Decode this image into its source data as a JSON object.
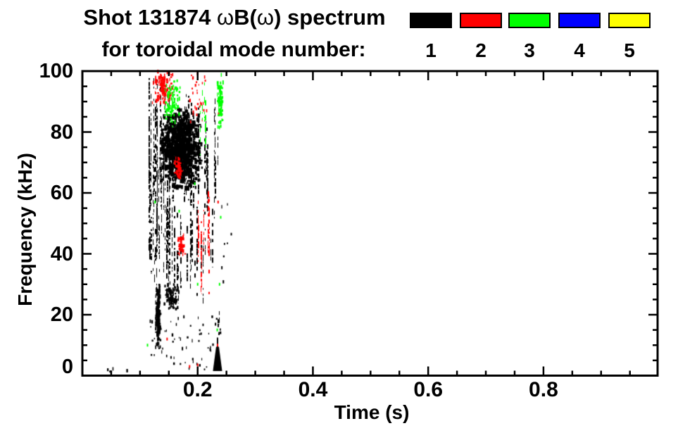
{
  "title": {
    "line1_segments": [
      {
        "text": "Shot 131874 ",
        "bold": true
      },
      {
        "text": "ω",
        "bold": false
      },
      {
        "text": "B(",
        "bold": true
      },
      {
        "text": "ω",
        "bold": false
      },
      {
        "text": ") spectrum",
        "bold": true
      }
    ],
    "line1_plain": "Shot 131874 ωB(ω) spectrum",
    "line2": "for toroidal mode number:"
  },
  "legend": {
    "entries": [
      {
        "label": "1",
        "color": "#000000"
      },
      {
        "label": "2",
        "color": "#ff0000"
      },
      {
        "label": "3",
        "color": "#00ff00"
      },
      {
        "label": "4",
        "color": "#0000ff"
      },
      {
        "label": "5",
        "color": "#ffff00"
      }
    ]
  },
  "chart_data": {
    "type": "scatter",
    "title": "Shot 131874 ωB(ω) spectrum",
    "subtitle": "for toroidal mode number:",
    "xlabel": "Time (s)",
    "ylabel": "Frequency (kHz)",
    "xlim": [
      0,
      0.998
    ],
    "ylim": [
      0,
      100
    ],
    "x_major_ticks": [
      0.2,
      0.4,
      0.6,
      0.8
    ],
    "x_minor_step": 0.05,
    "y_major_ticks": [
      0,
      20,
      40,
      60,
      80,
      100
    ],
    "y_minor_step": 5,
    "axis_color": "#000000",
    "background": "#ffffff",
    "legend_position": "top-right",
    "series": [
      {
        "name": "toroidal mode n=1",
        "color": "#000000"
      },
      {
        "name": "toroidal mode n=2",
        "color": "#ff0000"
      },
      {
        "name": "toroidal mode n=3",
        "color": "#00ff00"
      },
      {
        "name": "toroidal mode n=4",
        "color": "#0000ff"
      },
      {
        "name": "toroidal mode n=5",
        "color": "#ffff00"
      }
    ],
    "clusters": [
      {
        "name": "n1-left-dense-columns",
        "mode": 1,
        "color": "#000000",
        "style": "streaks",
        "t": [
          0.112,
          0.158
        ],
        "f": [
          30,
          100
        ],
        "n": 26
      },
      {
        "name": "n1-core-blob",
        "mode": 1,
        "color": "#000000",
        "style": "blob",
        "t": [
          0.131,
          0.207
        ],
        "f": [
          60,
          87
        ],
        "n": 850,
        "w": [
          2,
          5
        ],
        "h": [
          2,
          7
        ]
      },
      {
        "name": "n1-right-streaks",
        "mode": 1,
        "color": "#000000",
        "style": "streaks",
        "t": [
          0.155,
          0.24
        ],
        "f": [
          50,
          93
        ],
        "n": 22
      },
      {
        "name": "n1-mid-band-streaks",
        "mode": 1,
        "color": "#000000",
        "style": "streaks",
        "t": [
          0.115,
          0.238
        ],
        "f": [
          22,
          58
        ],
        "n": 26
      },
      {
        "name": "n1-low-sparse",
        "mode": 1,
        "color": "#000000",
        "style": "dots",
        "t": [
          0.11,
          0.24
        ],
        "f": [
          4,
          20
        ],
        "n": 55
      },
      {
        "name": "n1-thick-low-streak",
        "mode": 1,
        "color": "#000000",
        "style": "blob",
        "t": [
          0.1255,
          0.135
        ],
        "f": [
          8,
          30
        ],
        "n": 200,
        "w": [
          1,
          3
        ],
        "h": [
          2,
          6
        ]
      },
      {
        "name": "n1-low-cluster",
        "mode": 1,
        "color": "#000000",
        "style": "blob",
        "t": [
          0.138,
          0.168
        ],
        "f": [
          21,
          30
        ],
        "n": 120,
        "w": [
          1,
          3
        ],
        "h": [
          2,
          5
        ]
      },
      {
        "name": "n1-bottom-spike",
        "mode": 1,
        "color": "#000000",
        "style": "spike",
        "t": [
          0.2265,
          0.2425
        ],
        "f": [
          1.5,
          9.5
        ]
      },
      {
        "name": "n1-early-bottom-dots",
        "mode": 1,
        "color": "#000000",
        "style": "dots",
        "t": [
          0.042,
          0.078
        ],
        "f": [
          1.5,
          2.8
        ],
        "n": 5
      },
      {
        "name": "n1-bottom-dots",
        "mode": 1,
        "color": "#000000",
        "style": "dots",
        "t": [
          0.18,
          0.24
        ],
        "f": [
          1,
          5
        ],
        "n": 6
      },
      {
        "name": "n1-right-edge-dots",
        "mode": 1,
        "color": "#000000",
        "style": "dots",
        "t": [
          0.24,
          0.258
        ],
        "f": [
          28,
          60
        ],
        "n": 8
      },
      {
        "name": "n1-right-thin-streak",
        "mode": 1,
        "color": "#000000",
        "style": "streaks",
        "t": [
          0.234,
          0.24
        ],
        "f": [
          8,
          28
        ],
        "n": 2
      },
      {
        "name": "n2-top-left-cluster",
        "mode": 2,
        "color": "#ff0000",
        "style": "blob",
        "t": [
          0.12,
          0.158
        ],
        "f": [
          88,
          100
        ],
        "n": 120,
        "w": [
          1,
          3
        ],
        "h": [
          2,
          6
        ]
      },
      {
        "name": "n2-top-right-dashes",
        "mode": 2,
        "color": "#ff0000",
        "style": "dots",
        "t": [
          0.185,
          0.215
        ],
        "f": [
          83,
          100
        ],
        "n": 30
      },
      {
        "name": "n2-mid-patch-high",
        "mode": 2,
        "color": "#ff0000",
        "style": "blob",
        "t": [
          0.158,
          0.172
        ],
        "f": [
          64,
          72
        ],
        "n": 55,
        "w": [
          1,
          3
        ],
        "h": [
          2,
          5
        ]
      },
      {
        "name": "n2-mid-patch-low",
        "mode": 2,
        "color": "#ff0000",
        "style": "blob",
        "t": [
          0.162,
          0.178
        ],
        "f": [
          38,
          47
        ],
        "n": 50,
        "w": [
          1,
          3
        ],
        "h": [
          2,
          5
        ]
      },
      {
        "name": "n2-right-streaks",
        "mode": 2,
        "color": "#ff0000",
        "style": "streaks",
        "t": [
          0.198,
          0.225
        ],
        "f": [
          25,
          62
        ],
        "n": 11
      },
      {
        "name": "n2-scatter",
        "mode": 2,
        "color": "#ff0000",
        "style": "points",
        "pts": [
          [
            0.147,
            12
          ],
          [
            0.186,
            3
          ],
          [
            0.2,
            3.5
          ],
          [
            0.2345,
            10
          ],
          [
            0.2355,
            57
          ],
          [
            0.2365,
            86
          ]
        ]
      },
      {
        "name": "n3-top-left-cluster",
        "mode": 3,
        "color": "#00ff00",
        "style": "blob",
        "t": [
          0.138,
          0.171
        ],
        "f": [
          80,
          97
        ],
        "n": 85,
        "w": [
          1,
          3
        ],
        "h": [
          2,
          6
        ]
      },
      {
        "name": "n3-mid-streaks",
        "mode": 3,
        "color": "#00ff00",
        "style": "streaks",
        "t": [
          0.203,
          0.218
        ],
        "f": [
          72,
          97
        ],
        "n": 4
      },
      {
        "name": "n3-right-cluster",
        "mode": 3,
        "color": "#00ff00",
        "style": "blob",
        "t": [
          0.232,
          0.243
        ],
        "f": [
          80,
          100
        ],
        "n": 80,
        "w": [
          1,
          3
        ],
        "h": [
          2,
          6
        ]
      },
      {
        "name": "n3-scatter",
        "mode": 3,
        "color": "#00ff00",
        "style": "points",
        "pts": [
          [
            0.113,
            10
          ],
          [
            0.126,
            57
          ],
          [
            0.168,
            54
          ],
          [
            0.2,
            30
          ],
          [
            0.234,
            15
          ],
          [
            0.238,
            30
          ],
          [
            0.24,
            52
          ],
          [
            0.195,
            63
          ]
        ]
      }
    ]
  }
}
